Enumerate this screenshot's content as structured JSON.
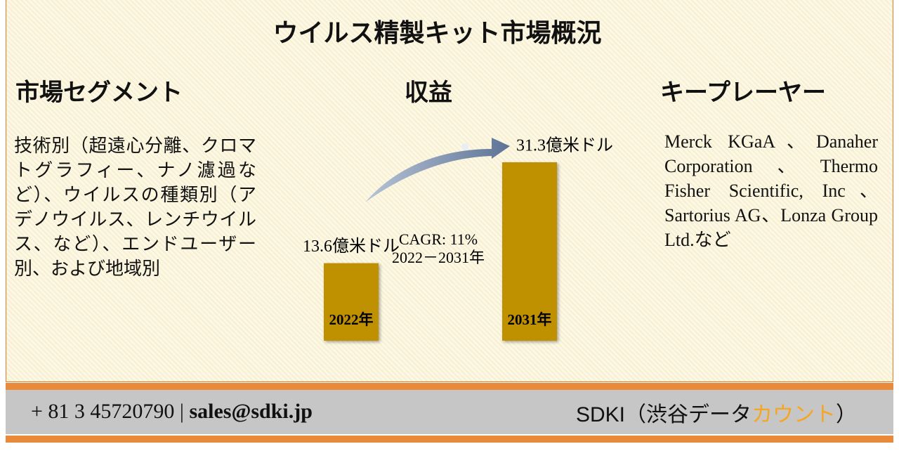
{
  "title": "ウイルス精製キット市場概況",
  "segment": {
    "heading": "市場セグメント",
    "text": "技術別（超遠心分離、クロマトグラフィー、ナノ濾過など）、ウイルスの種類別（アデノウイルス、レンチウイルス、など）、エンドユーザー別、および地域別"
  },
  "revenue": {
    "heading": "収益",
    "categories": [
      "2022年",
      "2031年"
    ],
    "values": [
      13.6,
      31.3
    ],
    "value_labels": [
      "13.6億米ドル",
      "31.3億米ドル"
    ],
    "color": "#bf9000",
    "cagr": "CAGR: 11%",
    "period": "2022－2031年"
  },
  "players": {
    "heading": "キープレーヤー",
    "text": "Merck KGaA、Danaher Corporation、Thermo Fisher Scientific, Inc、Sartorius AG、Lonza Group Ltd.など"
  },
  "footer": {
    "phone": "+ 81 3 45720790 |",
    "email": "sales@sdki.jp",
    "brand": "SDKI（渋谷データ",
    "brand_highlight": "カウント",
    "brand_end": "）"
  }
}
